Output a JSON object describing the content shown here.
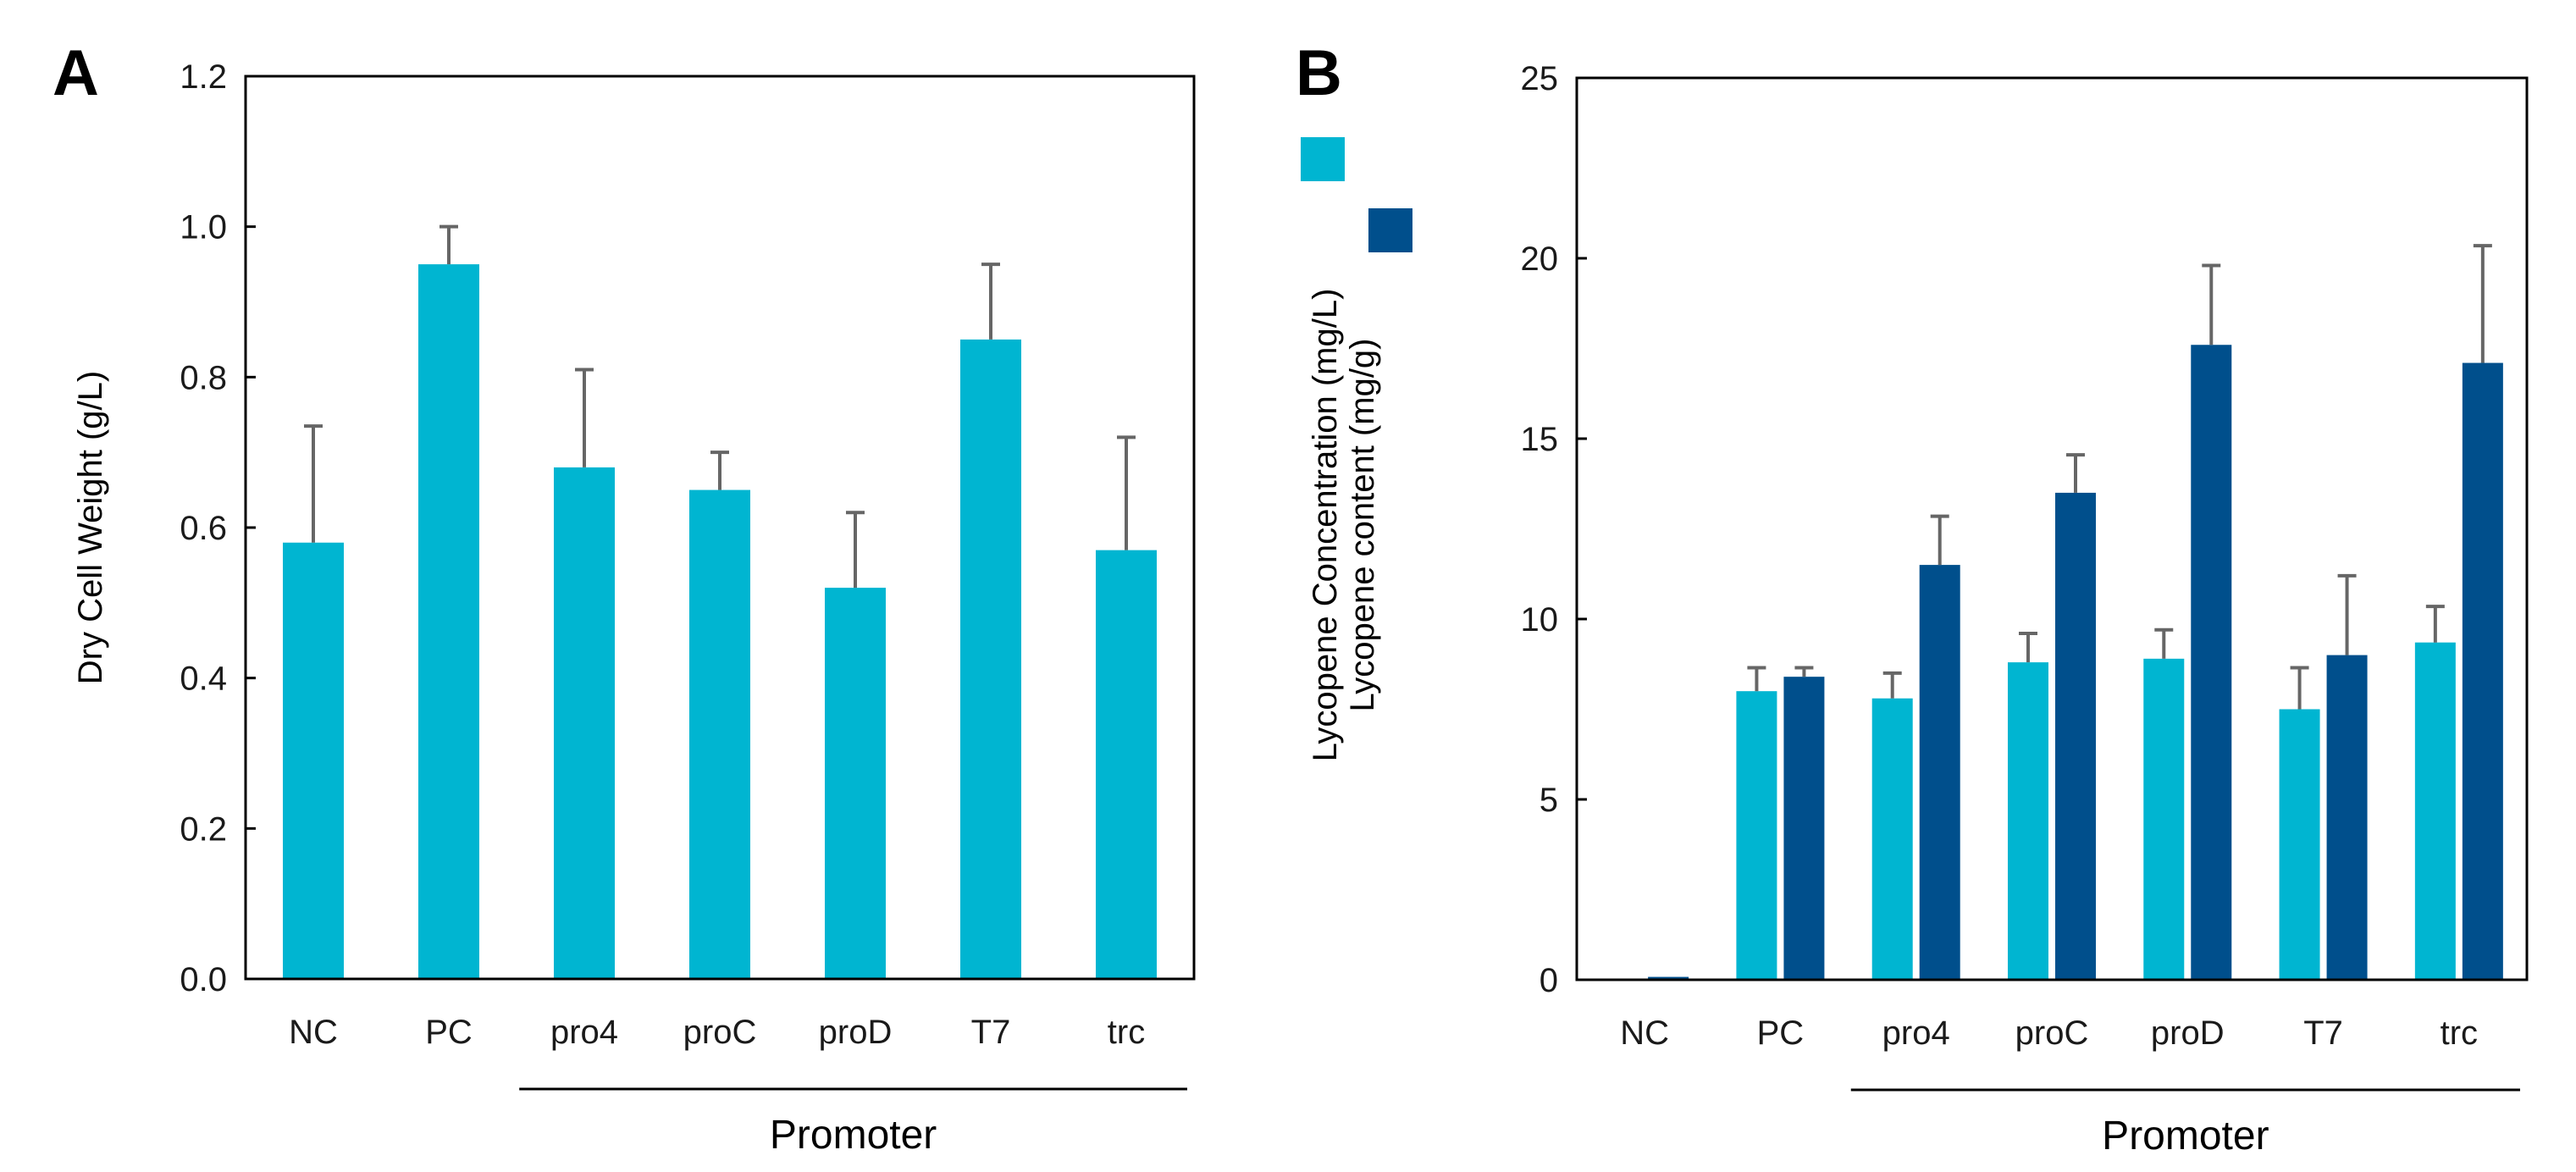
{
  "panels": {
    "A": {
      "letter": "A"
    },
    "B": {
      "letter": "B"
    }
  },
  "group_label": "Promoter",
  "colors": {
    "light": "#00B5D1",
    "dark": "#004F8C",
    "error": "#666666",
    "axis": "#000000"
  },
  "chart_data": [
    {
      "type": "bar",
      "panel": "A",
      "categories": [
        "NC",
        "PC",
        "pro4",
        "proC",
        "proD",
        "T7",
        "trc"
      ],
      "series": [
        {
          "values": [
            0.58,
            0.95,
            0.68,
            0.65,
            0.52,
            0.85,
            0.57
          ],
          "errors": [
            0.155,
            0.05,
            0.13,
            0.05,
            0.1,
            0.1,
            0.15
          ],
          "color": "#00B5D1"
        }
      ],
      "ylabel": "Dry Cell Weight (g/L)",
      "ylim": [
        0,
        1.2
      ],
      "yticks": [
        "0.0",
        "0.2",
        "0.4",
        "0.6",
        "0.8",
        "1.0",
        "1.2"
      ],
      "group": {
        "label": "Promoter",
        "from": "pro4",
        "to": "trc"
      },
      "grid": false
    },
    {
      "type": "bar",
      "panel": "B",
      "categories": [
        "NC",
        "PC",
        "pro4",
        "proC",
        "proD",
        "T7",
        "trc"
      ],
      "series": [
        {
          "name": "Lycopene Concentration (mg/L)",
          "values": [
            0,
            8.0,
            7.8,
            8.8,
            8.9,
            7.5,
            9.35
          ],
          "errors": [
            0,
            0.65,
            0.7,
            0.8,
            0.8,
            1.15,
            1.0
          ],
          "color": "#00B5D1"
        },
        {
          "name": "Lycopene content (mg/g)",
          "values": [
            0.08,
            8.4,
            11.5,
            13.5,
            17.6,
            9.0,
            17.1
          ],
          "errors": [
            0,
            0.25,
            1.35,
            1.05,
            2.2,
            2.2,
            3.25
          ],
          "color": "#004F8C"
        }
      ],
      "ylabel_lines": [
        "Lycopene Concentration (mg/L)",
        "Lycopene content (mg/g)"
      ],
      "ylim": [
        0,
        25
      ],
      "yticks": [
        "0",
        "5",
        "10",
        "15",
        "20",
        "25"
      ],
      "legend_position": "left, outside plot",
      "group": {
        "label": "Promoter",
        "from": "pro4",
        "to": "trc"
      },
      "grid": false
    }
  ]
}
